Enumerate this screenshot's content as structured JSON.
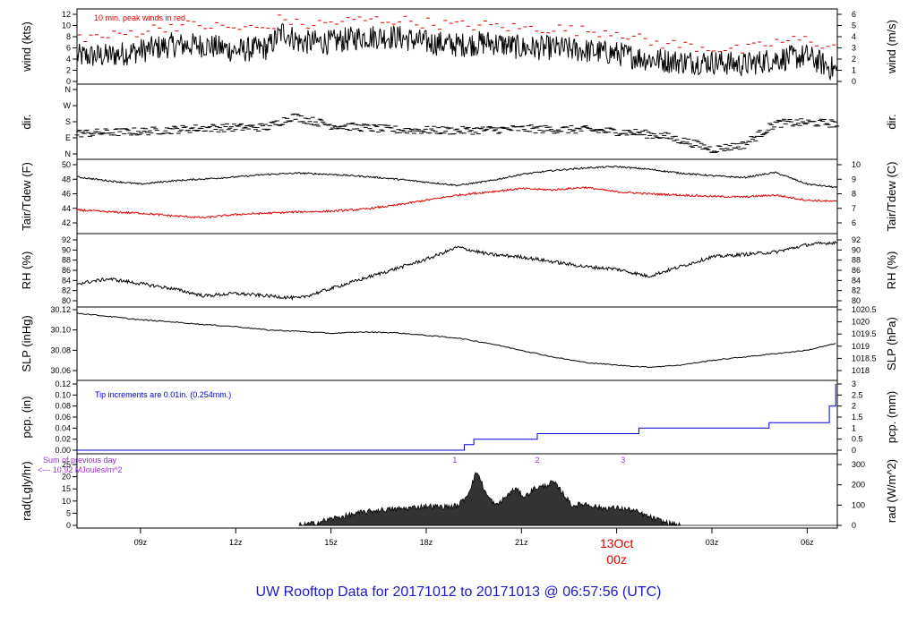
{
  "title": "UW Rooftop Data for 20171012  to  20171013 @ 06:57:56  (UTC)",
  "colors": {
    "peak": "#dd0000",
    "dew": "#dd0000",
    "precip": "#0000dd",
    "rad_note": "#9a33cc",
    "date": "#dd0000",
    "title": "#1a1acc"
  },
  "x_axis": {
    "ticks": [
      "09z",
      "12z",
      "15z",
      "18z",
      "21z",
      "00z",
      "03z",
      "06z"
    ],
    "date_label": "13Oct",
    "date_hour": "00z"
  },
  "chart_data": [
    {
      "type": "line",
      "panel": "wind",
      "ylabel": "wind (kts)",
      "ylabel_right": "wind (m/s)",
      "ylim": [
        0,
        12
      ],
      "yticks": [
        "0",
        "2",
        "4",
        "6",
        "8",
        "10",
        "12"
      ],
      "yticks_right": [
        "0",
        "1",
        "2",
        "3",
        "4",
        "5",
        "6"
      ],
      "annotation": "10 min. peak winds in red",
      "x_hours": [
        7.0,
        8.0,
        9.0,
        10.0,
        11.0,
        12.0,
        13.0,
        13.5,
        14.0,
        15.0,
        16.0,
        17.0,
        18.0,
        19.0,
        20.0,
        21.0,
        22.0,
        23.0,
        24.0,
        25.0,
        26.0,
        27.0,
        28.0,
        29.0,
        30.0,
        30.9
      ],
      "series": [
        {
          "values": [
            4.5,
            4.6,
            5.5,
            6.5,
            6.5,
            5.5,
            6.0,
            9.0,
            7.0,
            7.0,
            8.0,
            8.0,
            7.0,
            6.5,
            7.0,
            6.0,
            6.0,
            5.5,
            5.0,
            4.0,
            3.5,
            3.5,
            3.0,
            4.0,
            4.5,
            2.0
          ]
        },
        {
          "values": [
            8.0,
            8.0,
            9.0,
            10.0,
            10.0,
            9.5,
            9.5,
            11.5,
            10.0,
            10.5,
            11.0,
            11.0,
            10.5,
            10.0,
            10.0,
            9.5,
            9.5,
            9.0,
            9.0,
            7.0,
            6.5,
            6.0,
            5.5,
            7.0,
            7.5,
            6.0
          ]
        }
      ]
    },
    {
      "type": "scatter",
      "panel": "direction",
      "ylabel": "dir.",
      "ylabel_right": "dir.",
      "yticks": [
        "N",
        "E",
        "S",
        "W",
        "N"
      ],
      "ylim": [
        0,
        360
      ],
      "x_hours": [
        7.0,
        9.0,
        11.0,
        13.0,
        13.8,
        15.0,
        17.0,
        19.0,
        21.0,
        23.0,
        24.5,
        25.5,
        26.5,
        27.0,
        28.0,
        29.0,
        30.0,
        30.9
      ],
      "series": [
        {
          "values": [
            115,
            125,
            145,
            150,
            210,
            160,
            135,
            130,
            140,
            135,
            120,
            100,
            55,
            25,
            50,
            170,
            175,
            170
          ]
        }
      ]
    },
    {
      "type": "line",
      "panel": "temperature",
      "ylabel": "Tair/Tdew (F)",
      "ylabel_right": "Tair/Tdew (C)",
      "ylim": [
        41.5,
        50.5
      ],
      "yticks": [
        "42",
        "44",
        "46",
        "48",
        "50"
      ],
      "yticks_right": [
        "6",
        "7",
        "8",
        "9",
        "10"
      ],
      "x_hours": [
        7.0,
        8.0,
        9.0,
        10.0,
        11.0,
        12.0,
        13.0,
        14.0,
        15.0,
        16.0,
        17.0,
        18.0,
        19.0,
        20.0,
        21.0,
        22.0,
        23.0,
        24.0,
        25.0,
        26.0,
        27.0,
        28.0,
        29.0,
        30.0,
        30.9
      ],
      "series": [
        {
          "name": "Tair",
          "values": [
            48.6,
            48.0,
            47.5,
            48.0,
            48.3,
            48.6,
            49.0,
            49.2,
            49.0,
            48.7,
            48.3,
            47.8,
            47.3,
            48.0,
            49.0,
            49.6,
            50.0,
            50.2,
            49.8,
            49.2,
            48.8,
            48.5,
            49.3,
            47.5,
            47.0
          ]
        },
        {
          "name": "Tdew",
          "values": [
            43.5,
            43.2,
            43.0,
            42.6,
            42.3,
            42.8,
            43.0,
            43.2,
            43.3,
            43.6,
            44.2,
            45.0,
            45.8,
            46.3,
            46.8,
            46.6,
            47.0,
            46.3,
            46.0,
            45.8,
            45.6,
            45.5,
            45.8,
            45.0,
            44.8
          ]
        }
      ]
    },
    {
      "type": "line",
      "panel": "humidity",
      "ylabel": "RH (%)",
      "ylabel_right": "RH (%)",
      "ylim": [
        79.5,
        92
      ],
      "yticks": [
        "80",
        "82",
        "84",
        "86",
        "88",
        "90",
        "92"
      ],
      "yticks_right": [
        "80",
        "82",
        "84",
        "86",
        "88",
        "90",
        "92"
      ],
      "x_hours": [
        7.0,
        8.0,
        9.0,
        10.0,
        11.0,
        12.0,
        13.0,
        14.0,
        15.0,
        16.0,
        17.0,
        18.0,
        19.0,
        20.0,
        21.0,
        22.0,
        23.0,
        24.0,
        25.0,
        26.0,
        27.0,
        28.0,
        29.0,
        30.0,
        30.9
      ],
      "series": [
        {
          "values": [
            83.0,
            84.0,
            83.0,
            82.0,
            80.5,
            81.0,
            80.5,
            80.0,
            82.0,
            84.0,
            86.0,
            88.0,
            90.5,
            89.0,
            88.5,
            87.5,
            86.5,
            86.0,
            84.5,
            86.5,
            88.5,
            89.0,
            89.5,
            91.0,
            91.5
          ]
        }
      ]
    },
    {
      "type": "line",
      "panel": "pressure",
      "ylabel": "SLP (inHg)",
      "ylabel_right": "SLP (hPa)",
      "ylim": [
        30.05,
        30.14
      ],
      "yticks": [
        "30.06",
        "30.08",
        "30.10",
        "30.12"
      ],
      "yticks_right": [
        "1018",
        "1018.5",
        "1019",
        "1019.5",
        "1020",
        "1020.5"
      ],
      "x_hours": [
        7.0,
        8.0,
        9.0,
        10.0,
        11.0,
        12.0,
        13.0,
        14.0,
        15.0,
        16.0,
        17.0,
        18.0,
        19.0,
        20.0,
        21.0,
        22.0,
        23.0,
        24.0,
        25.0,
        26.0,
        27.0,
        28.0,
        29.0,
        30.0,
        30.9
      ],
      "series": [
        {
          "values": [
            30.135,
            30.13,
            30.125,
            30.122,
            30.118,
            30.115,
            30.11,
            30.108,
            30.105,
            30.107,
            30.106,
            30.102,
            30.098,
            30.09,
            30.08,
            30.07,
            30.062,
            30.058,
            30.055,
            30.058,
            30.065,
            30.07,
            30.075,
            30.08,
            30.09
          ]
        }
      ]
    },
    {
      "type": "line",
      "panel": "precipitation",
      "ylabel": "pcp. (in)",
      "ylabel_right": "pcp. (mm)",
      "ylim": [
        0,
        0.12
      ],
      "yticks": [
        "0.00",
        "0.02",
        "0.04",
        "0.06",
        "0.08",
        "0.10",
        "0.12"
      ],
      "yticks_right": [
        "0",
        "0.5",
        "1",
        "1.5",
        "2",
        "2.5",
        "3"
      ],
      "annotation": "Tip increments are 0.01in. (0.254mm.)",
      "x_hours": [
        7.0,
        18.9,
        19.2,
        19.5,
        21.5,
        24.3,
        24.7,
        28.8,
        30.5,
        30.7,
        30.9
      ],
      "series": [
        {
          "values": [
            0,
            0,
            0.01,
            0.02,
            0.03,
            0.03,
            0.04,
            0.05,
            0.05,
            0.08,
            0.12
          ]
        }
      ]
    },
    {
      "type": "area",
      "panel": "radiation",
      "ylabel": "rad(Lgly/hr)",
      "ylabel_right": "rad (W/m^2)",
      "ylim": [
        0,
        28
      ],
      "yticks": [
        "0",
        "5",
        "10",
        "15",
        "20",
        "25"
      ],
      "yticks_right": [
        "0",
        "100",
        "200",
        "300"
      ],
      "annotation_lines": [
        "Sum of previous day",
        "<--- 10.92 MJoules/m^2"
      ],
      "markers": [
        "1",
        "2",
        "3"
      ],
      "marker_hours": [
        18.9,
        21.5,
        24.2
      ],
      "x_hours": [
        14.0,
        14.5,
        15.0,
        15.5,
        16.0,
        16.5,
        17.0,
        17.5,
        18.0,
        18.5,
        19.0,
        19.3,
        19.6,
        19.9,
        20.2,
        20.5,
        20.8,
        21.1,
        21.4,
        21.7,
        22.0,
        22.3,
        22.6,
        23.0,
        23.5,
        24.0,
        24.5,
        25.0,
        25.5,
        26.0
      ],
      "series": [
        {
          "values": [
            0,
            1,
            3,
            4.5,
            6,
            7,
            7.5,
            8,
            9,
            8.5,
            9,
            14,
            25,
            14,
            9,
            13,
            17,
            13,
            17,
            18,
            20,
            15,
            9,
            10,
            8,
            8,
            7,
            4,
            1.5,
            0
          ]
        }
      ]
    }
  ]
}
